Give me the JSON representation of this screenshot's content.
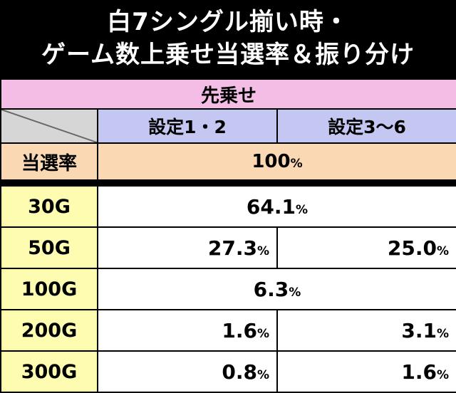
{
  "title": {
    "line1": "白7シングル揃い時・",
    "line2": "ゲーム数上乗せ当選率＆振り分け"
  },
  "table": {
    "section_label": "先乗せ",
    "columns": [
      "設定1・2",
      "設定3〜6"
    ],
    "rate_label": "当選率",
    "rate_value": "100",
    "percent_sign": "%",
    "rows": [
      {
        "label": "30G",
        "merged": "64.1"
      },
      {
        "label": "50G",
        "col1": "27.3",
        "col2": "25.0"
      },
      {
        "label": "100G",
        "merged": "6.3"
      },
      {
        "label": "200G",
        "col1": "1.6",
        "col2": "3.1"
      },
      {
        "label": "300G",
        "col1": "0.8",
        "col2": "1.6"
      }
    ]
  },
  "colors": {
    "background": "#000000",
    "header_pink": "#f3bde6",
    "column_lavender": "#c3c7f2",
    "rate_peach": "#fad8b4",
    "label_yellow": "#fdfcb1",
    "diagonal_gray": "#d6d6d6"
  }
}
